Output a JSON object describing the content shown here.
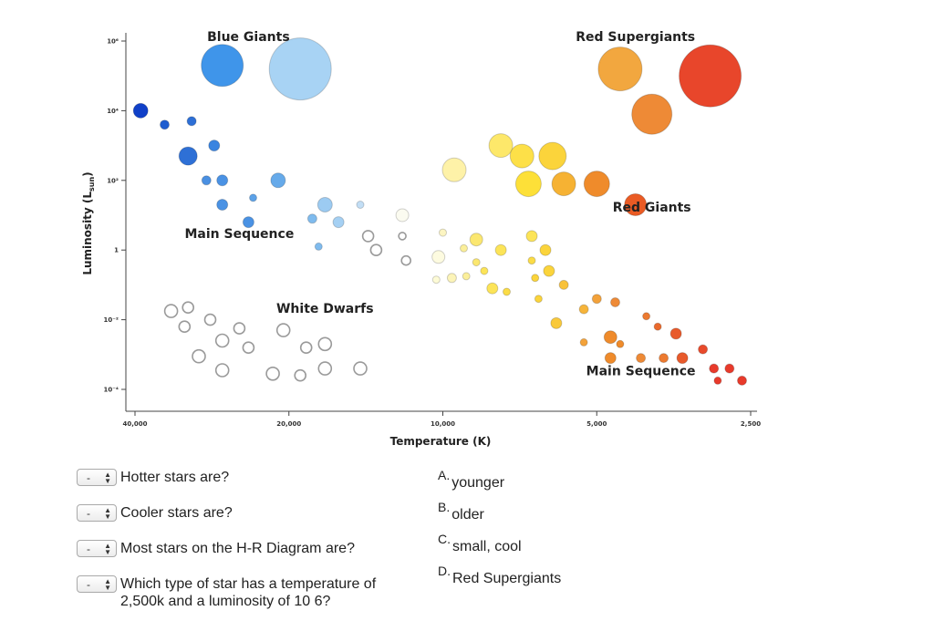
{
  "chart_data": {
    "type": "scatter",
    "title": "",
    "xlabel": "Temperature (K)",
    "ylabel": "Luminosity (L",
    "ylabel_sub": "sun",
    "ylabel_close": ")",
    "x_scale": "log-reversed",
    "y_scale": "log",
    "xlim": [
      40000,
      2500
    ],
    "ylim_exponent": [
      -4,
      6
    ],
    "x_ticks": [
      {
        "value": 40000,
        "label": "40,000"
      },
      {
        "value": 20000,
        "label": "20,000"
      },
      {
        "value": 10000,
        "label": "10,000"
      },
      {
        "value": 5000,
        "label": "5,000"
      },
      {
        "value": 2500,
        "label": "2,500"
      }
    ],
    "y_ticks": [
      {
        "exp": 6,
        "label": "10⁶"
      },
      {
        "exp": 4,
        "label": "10⁴"
      },
      {
        "exp": 2,
        "label": "10²"
      },
      {
        "exp": 0,
        "label": "1"
      },
      {
        "exp": -2,
        "label": "10⁻²"
      },
      {
        "exp": -4,
        "label": "10⁻⁴"
      }
    ],
    "regions": [
      {
        "name": "Blue Giants",
        "t": 24000,
        "exp": 6.0
      },
      {
        "name": "Red Supergiants",
        "t": 4200,
        "exp": 6.0
      },
      {
        "name": "Red Giants",
        "t": 3900,
        "exp": 1.1
      },
      {
        "name": "Main Sequence",
        "t": 25000,
        "exp": 0.35,
        "id": "upper"
      },
      {
        "name": "White Dwarfs",
        "t": 17000,
        "exp": -1.8
      },
      {
        "name": "Main Sequence",
        "t": 4100,
        "exp": -3.6,
        "id": "lower"
      }
    ],
    "stars": [
      {
        "t": 27000,
        "exp": 5.3,
        "r": 23,
        "c": "#3f95ea"
      },
      {
        "t": 19000,
        "exp": 5.2,
        "r": 34,
        "c": "#a8d3f4"
      },
      {
        "t": 4500,
        "exp": 5.2,
        "r": 24,
        "c": "#f2a73f"
      },
      {
        "t": 3000,
        "exp": 5.0,
        "r": 34,
        "c": "#e8462b"
      },
      {
        "t": 3900,
        "exp": 3.9,
        "r": 22,
        "c": "#ee8a36"
      },
      {
        "t": 39000,
        "exp": 4.0,
        "r": 8,
        "c": "#1040c8"
      },
      {
        "t": 35000,
        "exp": 3.6,
        "r": 5,
        "c": "#1f5dd0"
      },
      {
        "t": 31000,
        "exp": 3.7,
        "r": 5,
        "c": "#2d6fd6"
      },
      {
        "t": 31500,
        "exp": 2.7,
        "r": 10,
        "c": "#2e70d6"
      },
      {
        "t": 28000,
        "exp": 3.0,
        "r": 6,
        "c": "#3a84e0"
      },
      {
        "t": 29000,
        "exp": 2.0,
        "r": 5,
        "c": "#4a90e2"
      },
      {
        "t": 27000,
        "exp": 2.0,
        "r": 6,
        "c": "#4a92e4"
      },
      {
        "t": 21000,
        "exp": 2.0,
        "r": 8,
        "c": "#66aaea"
      },
      {
        "t": 27000,
        "exp": 1.3,
        "r": 6,
        "c": "#4a92e4"
      },
      {
        "t": 23500,
        "exp": 1.5,
        "r": 4,
        "c": "#5ca2e8"
      },
      {
        "t": 24000,
        "exp": 0.8,
        "r": 6,
        "c": "#4a92e4"
      },
      {
        "t": 18000,
        "exp": 0.9,
        "r": 5,
        "c": "#7fbbee"
      },
      {
        "t": 17000,
        "exp": 1.3,
        "r": 8,
        "c": "#9ccbf2"
      },
      {
        "t": 16000,
        "exp": 0.8,
        "r": 6,
        "c": "#a5d0f3"
      },
      {
        "t": 14500,
        "exp": 1.3,
        "r": 4,
        "c": "#c2def5"
      },
      {
        "t": 17500,
        "exp": 0.1,
        "r": 4,
        "c": "#7fbbee"
      },
      {
        "t": 14000,
        "exp": 0.4,
        "r": 6,
        "c": "#ffffff"
      },
      {
        "t": 13500,
        "exp": 0.0,
        "r": 6,
        "c": "#ffffff"
      },
      {
        "t": 12000,
        "exp": 1.0,
        "r": 7,
        "c": "#fbfbf0"
      },
      {
        "t": 12000,
        "exp": 0.4,
        "r": 4,
        "c": "#ffffff"
      },
      {
        "t": 11800,
        "exp": -0.3,
        "r": 5,
        "c": "#ffffff"
      },
      {
        "t": 10200,
        "exp": -0.2,
        "r": 7,
        "c": "#fdfbe0"
      },
      {
        "t": 10000,
        "exp": 0.5,
        "r": 4,
        "c": "#fcf5c2"
      },
      {
        "t": 10300,
        "exp": -0.85,
        "r": 4,
        "c": "#fdfbd6"
      },
      {
        "t": 9600,
        "exp": -0.8,
        "r": 5,
        "c": "#fcf4b8"
      },
      {
        "t": 9000,
        "exp": -0.75,
        "r": 4,
        "c": "#fbef9a"
      },
      {
        "t": 9100,
        "exp": 0.05,
        "r": 4,
        "c": "#fbef9a"
      },
      {
        "t": 8600,
        "exp": 0.3,
        "r": 7,
        "c": "#fbe770"
      },
      {
        "t": 8600,
        "exp": -0.35,
        "r": 4,
        "c": "#fbe770"
      },
      {
        "t": 8300,
        "exp": -0.6,
        "r": 4,
        "c": "#fce458"
      },
      {
        "t": 8000,
        "exp": -1.1,
        "r": 6,
        "c": "#fce458"
      },
      {
        "t": 7700,
        "exp": 0.0,
        "r": 6,
        "c": "#fce458"
      },
      {
        "t": 7500,
        "exp": -1.2,
        "r": 4,
        "c": "#fbdc46"
      },
      {
        "t": 9500,
        "exp": 2.3,
        "r": 13,
        "c": "#fef2a8"
      },
      {
        "t": 7700,
        "exp": 3.0,
        "r": 13,
        "c": "#fde86a"
      },
      {
        "t": 7000,
        "exp": 2.7,
        "r": 13,
        "c": "#fde048"
      },
      {
        "t": 6100,
        "exp": 2.7,
        "r": 15,
        "c": "#fbd43b"
      },
      {
        "t": 6800,
        "exp": 1.9,
        "r": 14,
        "c": "#fde038"
      },
      {
        "t": 5800,
        "exp": 1.9,
        "r": 13,
        "c": "#f6b233"
      },
      {
        "t": 5000,
        "exp": 1.9,
        "r": 14,
        "c": "#ef8b2b"
      },
      {
        "t": 4200,
        "exp": 1.3,
        "r": 12,
        "c": "#ea5b24"
      },
      {
        "t": 6700,
        "exp": 0.4,
        "r": 6,
        "c": "#fce458"
      },
      {
        "t": 6700,
        "exp": -0.3,
        "r": 4,
        "c": "#fbdc46"
      },
      {
        "t": 6300,
        "exp": 0.0,
        "r": 6,
        "c": "#fbd43b"
      },
      {
        "t": 6200,
        "exp": -0.6,
        "r": 6,
        "c": "#fbd43b"
      },
      {
        "t": 6600,
        "exp": -0.8,
        "r": 4,
        "c": "#fbd43b"
      },
      {
        "t": 6500,
        "exp": -1.4,
        "r": 4,
        "c": "#fbd43b"
      },
      {
        "t": 5800,
        "exp": -1.0,
        "r": 5,
        "c": "#f8c23a"
      },
      {
        "t": 5300,
        "exp": -1.7,
        "r": 5,
        "c": "#f6b43a"
      },
      {
        "t": 6000,
        "exp": -2.1,
        "r": 6,
        "c": "#f9c93a"
      },
      {
        "t": 5000,
        "exp": -1.4,
        "r": 5,
        "c": "#f3a23a"
      },
      {
        "t": 4600,
        "exp": -1.5,
        "r": 5,
        "c": "#ee8a36"
      },
      {
        "t": 4000,
        "exp": -1.9,
        "r": 4,
        "c": "#ec7a30"
      },
      {
        "t": 4700,
        "exp": -2.5,
        "r": 7,
        "c": "#ef8b2b"
      },
      {
        "t": 5300,
        "exp": -2.65,
        "r": 4,
        "c": "#f3a23a"
      },
      {
        "t": 3800,
        "exp": -2.2,
        "r": 4,
        "c": "#ea6a2d"
      },
      {
        "t": 3500,
        "exp": -2.4,
        "r": 6,
        "c": "#e85a2b"
      },
      {
        "t": 4500,
        "exp": -2.7,
        "r": 4,
        "c": "#ef8b2b"
      },
      {
        "t": 4100,
        "exp": -3.1,
        "r": 5,
        "c": "#ee8a36"
      },
      {
        "t": 3700,
        "exp": -3.1,
        "r": 5,
        "c": "#ec7a30"
      },
      {
        "t": 3400,
        "exp": -3.1,
        "r": 6,
        "c": "#e85a2b"
      },
      {
        "t": 4700,
        "exp": -3.1,
        "r": 6,
        "c": "#ef8b2b"
      },
      {
        "t": 3100,
        "exp": -2.85,
        "r": 5,
        "c": "#e84a2b"
      },
      {
        "t": 2950,
        "exp": -3.4,
        "r": 5,
        "c": "#e83a2b"
      },
      {
        "t": 2750,
        "exp": -3.4,
        "r": 5,
        "c": "#e83a2b"
      },
      {
        "t": 2900,
        "exp": -3.75,
        "r": 4,
        "c": "#e83a2b"
      },
      {
        "t": 2600,
        "exp": -3.75,
        "r": 5,
        "c": "#e83a2b"
      },
      {
        "t": 34000,
        "exp": -1.75,
        "r": 7,
        "c": "#ffffff"
      },
      {
        "t": 31500,
        "exp": -1.65,
        "r": 6,
        "c": "#ffffff"
      },
      {
        "t": 32000,
        "exp": -2.2,
        "r": 6,
        "c": "#ffffff"
      },
      {
        "t": 28500,
        "exp": -2.0,
        "r": 6,
        "c": "#ffffff"
      },
      {
        "t": 25000,
        "exp": -2.25,
        "r": 6,
        "c": "#ffffff"
      },
      {
        "t": 20500,
        "exp": -2.3,
        "r": 7,
        "c": "#ffffff"
      },
      {
        "t": 27000,
        "exp": -2.6,
        "r": 7,
        "c": "#ffffff"
      },
      {
        "t": 24000,
        "exp": -2.8,
        "r": 6,
        "c": "#ffffff"
      },
      {
        "t": 18500,
        "exp": -2.8,
        "r": 6,
        "c": "#ffffff"
      },
      {
        "t": 17000,
        "exp": -2.7,
        "r": 7,
        "c": "#ffffff"
      },
      {
        "t": 30000,
        "exp": -3.05,
        "r": 7,
        "c": "#ffffff"
      },
      {
        "t": 27000,
        "exp": -3.45,
        "r": 7,
        "c": "#ffffff"
      },
      {
        "t": 21500,
        "exp": -3.55,
        "r": 7,
        "c": "#ffffff"
      },
      {
        "t": 19000,
        "exp": -3.6,
        "r": 6,
        "c": "#ffffff"
      },
      {
        "t": 17000,
        "exp": -3.4,
        "r": 7,
        "c": "#ffffff"
      },
      {
        "t": 14500,
        "exp": -3.4,
        "r": 7,
        "c": "#ffffff"
      }
    ]
  },
  "questions": [
    {
      "select": "-",
      "text": "Hotter stars are?"
    },
    {
      "select": "-",
      "text": "Cooler stars are?"
    },
    {
      "select": "-",
      "text": "Most stars on the H-R Diagram are?"
    },
    {
      "select": "-",
      "text": "Which type of star has a temperature of",
      "text2": "2,500k and a luminosity of 10 6?"
    }
  ],
  "answers": [
    {
      "letter": "A.",
      "text": "younger"
    },
    {
      "letter": "B.",
      "text": "older"
    },
    {
      "letter": "C.",
      "text": "small, cool"
    },
    {
      "letter": "D.",
      "text": "Red Supergiants"
    }
  ]
}
